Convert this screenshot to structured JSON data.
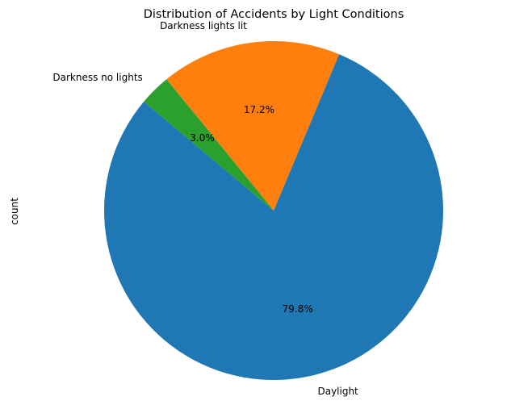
{
  "chart_data": {
    "type": "pie",
    "title": "Distribution of Accidents by Light Conditions",
    "ylabel": "count",
    "categories": [
      "Daylight",
      "Darkness lights lit",
      "Darkness no lights"
    ],
    "values": [
      79.8,
      17.2,
      3.0
    ],
    "pct_labels": [
      "79.8%",
      "17.2%",
      "3.0%"
    ],
    "colors": [
      "#1f77b4",
      "#ff7f0e",
      "#2ca02c"
    ],
    "start_angle_deg": 140,
    "legend": "none"
  }
}
